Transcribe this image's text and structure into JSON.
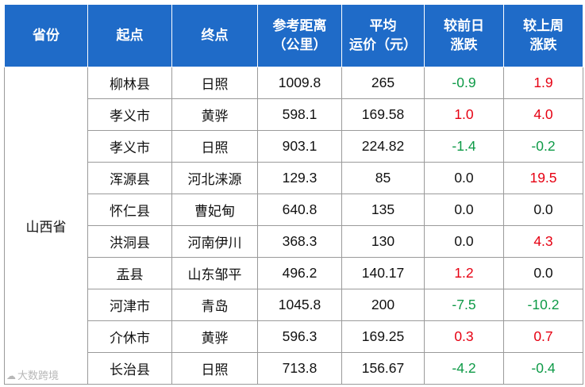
{
  "headers": [
    [
      "省份"
    ],
    [
      "起点"
    ],
    [
      "终点"
    ],
    [
      "参考距离",
      "（公里）"
    ],
    [
      "平均",
      "运价（元）"
    ],
    [
      "较前日",
      "涨跌"
    ],
    [
      "较上周",
      "涨跌"
    ]
  ],
  "province": "山西省",
  "rows": [
    {
      "from": "柳林县",
      "to": "日照",
      "distance": "1009.8",
      "price": "265",
      "day_change": "-0.9",
      "week_change": "1.9"
    },
    {
      "from": "孝义市",
      "to": "黄骅",
      "distance": "598.1",
      "price": "169.58",
      "day_change": "1.0",
      "week_change": "4.0"
    },
    {
      "from": "孝义市",
      "to": "日照",
      "distance": "903.1",
      "price": "224.82",
      "day_change": "-1.4",
      "week_change": "-0.2"
    },
    {
      "from": "浑源县",
      "to": "河北涞源",
      "distance": "129.3",
      "price": "85",
      "day_change": "0.0",
      "week_change": "19.5"
    },
    {
      "from": "怀仁县",
      "to": "曹妃甸",
      "distance": "640.8",
      "price": "135",
      "day_change": "0.0",
      "week_change": "0.0"
    },
    {
      "from": "洪洞县",
      "to": "河南伊川",
      "distance": "368.3",
      "price": "130",
      "day_change": "0.0",
      "week_change": "4.3"
    },
    {
      "from": "盂县",
      "to": "山东邹平",
      "distance": "496.2",
      "price": "140.17",
      "day_change": "1.2",
      "week_change": "0.0"
    },
    {
      "from": "河津市",
      "to": "青岛",
      "distance": "1045.8",
      "price": "200",
      "day_change": "-7.5",
      "week_change": "-10.2"
    },
    {
      "from": "介休市",
      "to": "黄骅",
      "distance": "596.3",
      "price": "169.25",
      "day_change": "0.3",
      "week_change": "0.7"
    },
    {
      "from": "长治县",
      "to": "日照",
      "distance": "713.8",
      "price": "156.67",
      "day_change": "-4.2",
      "week_change": "-0.4"
    }
  ],
  "colors": {
    "header_bg": "#1f6bc8",
    "header_text": "#ffffff",
    "rise": "#e60012",
    "fall": "#0e9a47",
    "grid": "#9a9a9a"
  },
  "watermark": {
    "icon": "cloud-icon",
    "text": "大数跨境"
  }
}
